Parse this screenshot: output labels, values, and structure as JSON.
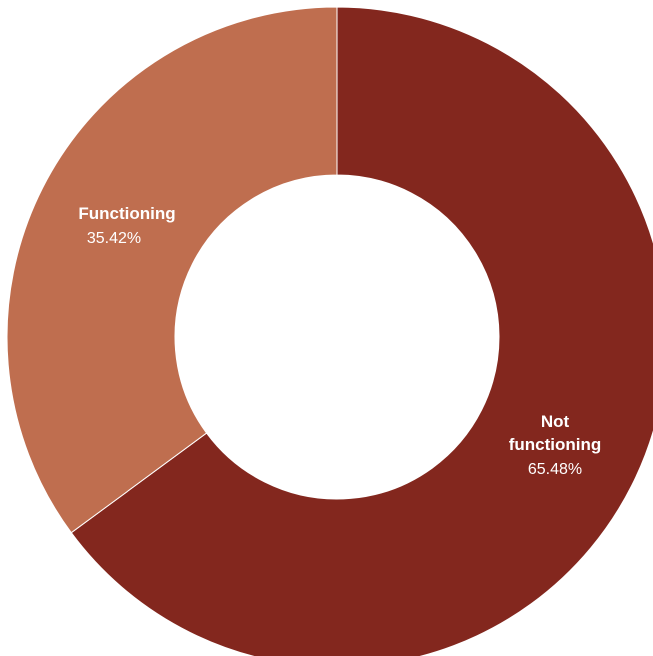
{
  "chart_data": {
    "type": "pie",
    "style": "donut",
    "slices": [
      {
        "label_lines": [
          "Not",
          "functioning"
        ],
        "percent_text": "65.48%",
        "value": 65.48,
        "color": "#83271e"
      },
      {
        "label_lines": [
          "Functioning"
        ],
        "percent_text": "35.42%",
        "value": 35.42,
        "color": "#bf6e4f"
      }
    ]
  }
}
